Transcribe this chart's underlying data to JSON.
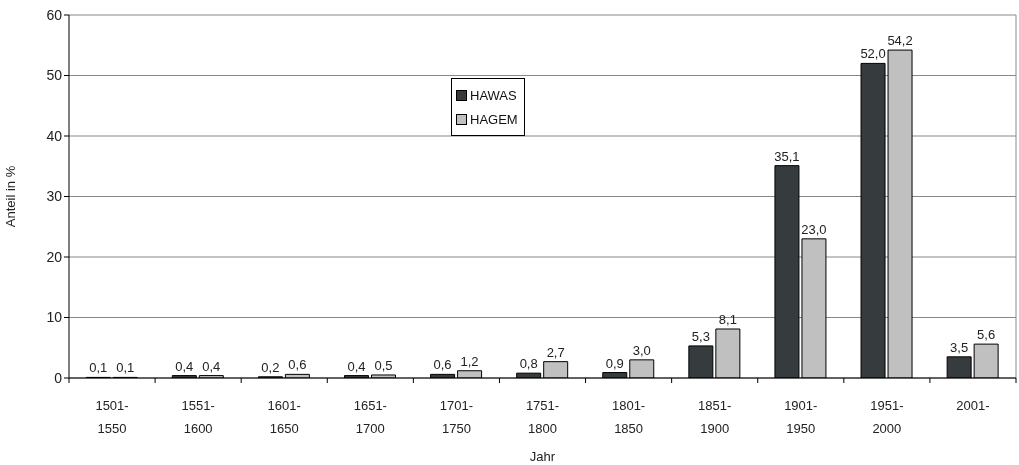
{
  "chart_data": {
    "type": "bar",
    "xlabel": "Jahr",
    "ylabel": "Anteil in %",
    "categories": [
      "1501-\n1550",
      "1551-\n1600",
      "1601-\n1650",
      "1651-\n1700",
      "1701-\n1750",
      "1751-\n1800",
      "1801-\n1850",
      "1851-\n1900",
      "1901-\n1950",
      "1951-\n2000",
      "2001-"
    ],
    "series": [
      {
        "name": "HAWAS",
        "color": "#363b3d",
        "values": [
          0.1,
          0.4,
          0.2,
          0.4,
          0.6,
          0.8,
          0.9,
          5.3,
          35.1,
          52.0,
          3.5
        ],
        "value_labels": [
          "0,1",
          "0,4",
          "0,2",
          "0,4",
          "0,6",
          "0,8",
          "0,9",
          "5,3",
          "35,1",
          "52,0",
          "3,5"
        ]
      },
      {
        "name": "HAGEM",
        "color": "#c0c0c0",
        "values": [
          0.1,
          0.4,
          0.6,
          0.5,
          1.2,
          2.7,
          3.0,
          8.1,
          23.0,
          54.2,
          5.6
        ],
        "value_labels": [
          "0,1",
          "0,4",
          "0,6",
          "0,5",
          "1,2",
          "2,7",
          "3,0",
          "8,1",
          "23,0",
          "54,2",
          "5,6"
        ]
      }
    ],
    "ylim": [
      0,
      60
    ],
    "yticks": [
      0,
      10,
      20,
      30,
      40,
      50,
      60
    ],
    "grid": "y",
    "legend": "top"
  }
}
